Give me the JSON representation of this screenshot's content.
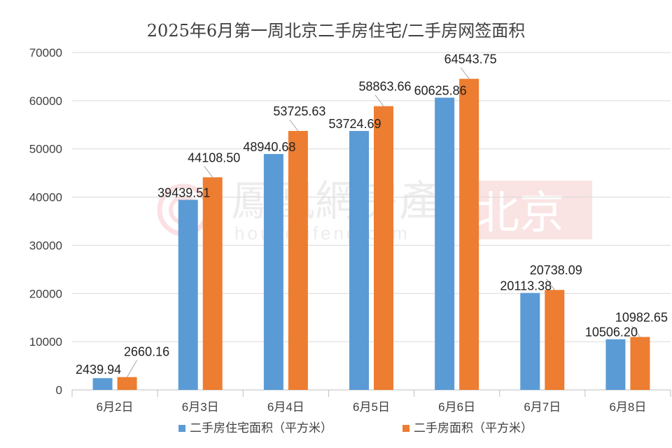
{
  "chart_data": {
    "type": "bar",
    "title": "2025年6月第一周北京二手房住宅/二手房网签面积",
    "categories": [
      "6月2日",
      "6月3日",
      "6月4日",
      "6月5日",
      "6月6日",
      "6月7日",
      "6月8日"
    ],
    "series": [
      {
        "name": "二手房住宅面积（平方米）",
        "color": "#5B9BD5",
        "values": [
          2439.94,
          39439.51,
          48940.68,
          53724.69,
          60625.86,
          20113.38,
          10506.2
        ],
        "labels": [
          "2439.94",
          "39439.51",
          "48940.68",
          "53724.69",
          "60625.86",
          "20113.38",
          "10506.20"
        ]
      },
      {
        "name": "二手房面积（平方米）",
        "color": "#ED7D31",
        "values": [
          2660.16,
          44108.5,
          53725.63,
          58863.66,
          64543.75,
          20738.09,
          10982.65
        ],
        "labels": [
          "2660.16",
          "44108.50",
          "53725.63",
          "58863.66",
          "64543.75",
          "20738.09",
          "10982.65"
        ]
      }
    ],
    "ylim": [
      0,
      70000
    ],
    "yticks": [
      0,
      10000,
      20000,
      30000,
      40000,
      50000,
      60000,
      70000
    ],
    "grid": true,
    "legend": "bottom"
  },
  "watermark": {
    "brand": "鳳凰網房產",
    "url": "house.ifeng.com",
    "city": "北京"
  }
}
